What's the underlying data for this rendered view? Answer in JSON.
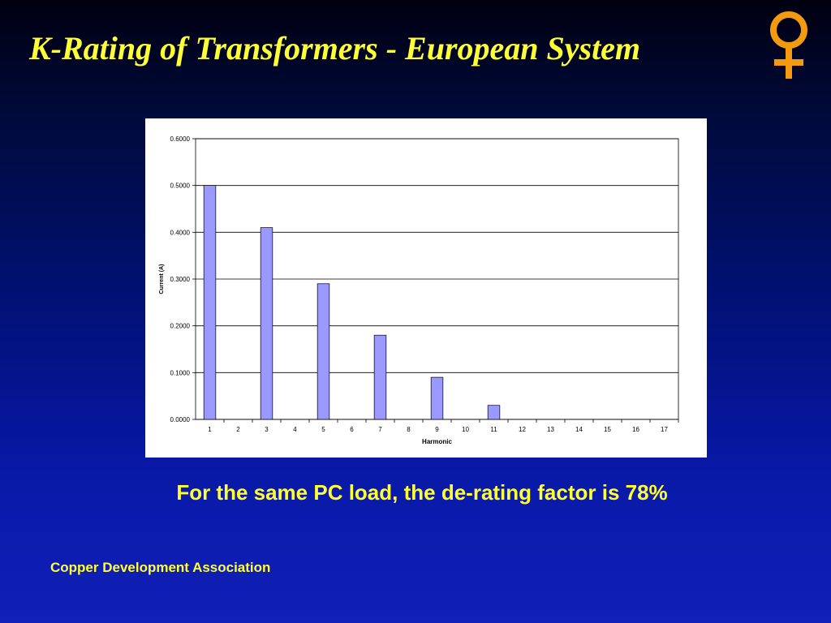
{
  "slide": {
    "title": "K-Rating of Transformers - European System",
    "statement": "For the same PC load, the de-rating factor is 78%",
    "footer": "Copper Development Association",
    "logo_icon": "copper-symbol-icon",
    "accent_color": "#ffff33",
    "logo_color": "#f39a0f"
  },
  "chart_data": {
    "type": "bar",
    "title": "",
    "xlabel": "Harmonic",
    "ylabel": "Current (A)",
    "ylim": [
      0,
      0.6
    ],
    "yticks": [
      "0.0000",
      "0.1000",
      "0.2000",
      "0.3000",
      "0.4000",
      "0.5000",
      "0.6000"
    ],
    "categories": [
      "1",
      "2",
      "3",
      "4",
      "5",
      "6",
      "7",
      "8",
      "9",
      "10",
      "11",
      "12",
      "13",
      "14",
      "15",
      "16",
      "17"
    ],
    "values": [
      0.5,
      0,
      0.41,
      0,
      0.29,
      0,
      0.18,
      0,
      0.09,
      0,
      0.03,
      0,
      0,
      0,
      0,
      0,
      0
    ],
    "bar_color": "#9999ff",
    "grid": true
  }
}
